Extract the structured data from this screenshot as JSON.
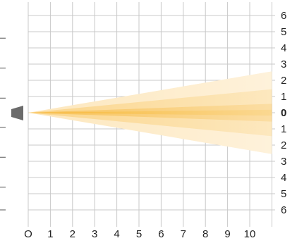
{
  "chart_data": {
    "type": "area",
    "x_ticks": [
      "O",
      "1",
      "2",
      "3",
      "4",
      "5",
      "6",
      "7",
      "8",
      "9",
      "10"
    ],
    "y_ticks": [
      "6",
      "5",
      "4",
      "3",
      "2",
      "1",
      "0",
      "1",
      "2",
      "3",
      "4",
      "5",
      "6"
    ],
    "xlim": [
      0,
      11
    ],
    "ylim": [
      -6,
      6
    ],
    "grid": true,
    "origin": [
      0,
      0
    ],
    "cones": [
      {
        "name": "",
        "half_width_at_x11": 2.55,
        "color": "#fde7bd"
      },
      {
        "name": "",
        "half_width_at_x11": 1.45,
        "color": "#fbd58a"
      },
      {
        "name": "",
        "half_width_at_x11": 0.55,
        "color": "#f8c258"
      }
    ],
    "cone_base_color": "#f5b01e",
    "emitter_color": "#6b6b6b"
  }
}
